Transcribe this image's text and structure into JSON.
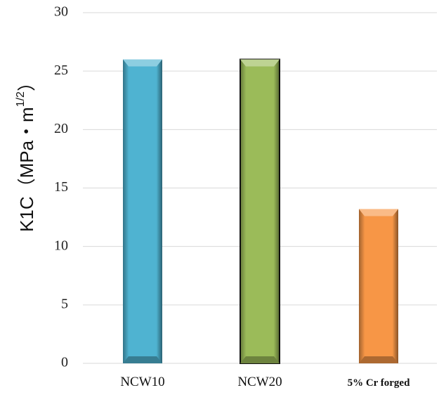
{
  "chart_data": {
    "type": "bar",
    "title": "",
    "xlabel": "",
    "ylabel": {
      "prefix": "K1C（MPa・m",
      "sup": "1/2",
      "suffix": "）"
    },
    "ylim": [
      0,
      30
    ],
    "yticks": [
      0,
      5,
      10,
      15,
      20,
      25,
      30
    ],
    "grid": true,
    "legend": "none",
    "categories": [
      "NCW10",
      "NCW20",
      "5% Cr forged"
    ],
    "values": [
      26,
      26,
      13.2
    ],
    "colors": [
      "#4fb3d1",
      "#9bbb59",
      "#f79646"
    ]
  }
}
